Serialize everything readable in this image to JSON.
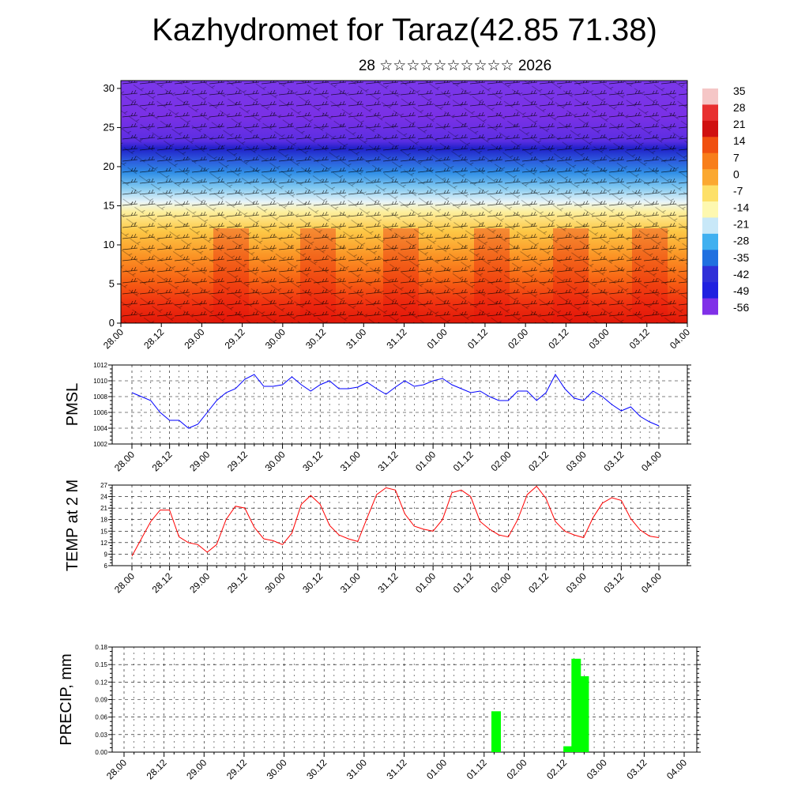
{
  "header": {
    "title": "Kazhydromet for Taraz(42.85 71.38)",
    "subtitle": "28 ☆☆☆☆☆☆☆☆☆☆ 2026"
  },
  "chart_data": [
    {
      "type": "heatmap",
      "name": "temperature-cross-section",
      "y_ticks": [
        "0",
        "5",
        "10",
        "15",
        "20",
        "25",
        "30"
      ],
      "ylim": [
        0,
        31
      ],
      "x_ticks": [
        "28.00",
        "28.12",
        "29.00",
        "29.12",
        "30.00",
        "30.12",
        "31.00",
        "31.12",
        "01.00",
        "01.12",
        "02.00",
        "02.12",
        "03.00",
        "03.12",
        "04.00"
      ],
      "colorbar": {
        "labels": [
          "35",
          "28",
          "21",
          "14",
          "7",
          "0",
          "-7",
          "-14",
          "-21",
          "-28",
          "-35",
          "-42",
          "-49",
          "-56"
        ],
        "colors": [
          "#f5c6c6",
          "#e83030",
          "#d01010",
          "#f05010",
          "#f87e1a",
          "#fba830",
          "#fde068",
          "#fdf8b0",
          "#c8e8f8",
          "#40b0f0",
          "#2070e0",
          "#3030d8",
          "#2020e0",
          "#8030e8"
        ]
      }
    },
    {
      "type": "line",
      "name": "pmsl",
      "ylabel": "PMSL",
      "color": "#0000ff",
      "ylim": [
        1002,
        1012
      ],
      "y_ticks": [
        "1002",
        "1004",
        "1006",
        "1008",
        "1010",
        "1012"
      ],
      "x_ticks": [
        "28.00",
        "28.12",
        "29.00",
        "29.12",
        "30.00",
        "30.12",
        "31.00",
        "31.12",
        "01.00",
        "01.12",
        "02.00",
        "02.12",
        "03.00",
        "03.12",
        "04.00"
      ],
      "values": [
        1008.5,
        1008.0,
        1007.5,
        1006.0,
        1005.0,
        1005.0,
        1004.0,
        1004.5,
        1006.0,
        1007.5,
        1008.5,
        1009.0,
        1010.2,
        1010.8,
        1009.3,
        1009.3,
        1009.5,
        1010.5,
        1009.5,
        1008.7,
        1009.5,
        1010.0,
        1009.0,
        1009.0,
        1009.2,
        1009.8,
        1009.0,
        1008.3,
        1009.2,
        1010.0,
        1009.3,
        1009.5,
        1010.0,
        1010.3,
        1009.5,
        1009.0,
        1008.5,
        1008.7,
        1008.0,
        1007.5,
        1007.5,
        1008.7,
        1008.7,
        1007.5,
        1008.5,
        1010.8,
        1009.0,
        1007.8,
        1007.5,
        1008.7,
        1008.0,
        1007.0,
        1006.2,
        1006.7,
        1005.5,
        1004.8,
        1004.3
      ]
    },
    {
      "type": "line",
      "name": "temp-2m",
      "ylabel": "TEMP at 2 M",
      "color": "#ff0000",
      "ylim": [
        6,
        27
      ],
      "y_ticks": [
        "6",
        "9",
        "12",
        "15",
        "18",
        "21",
        "24",
        "27"
      ],
      "x_ticks": [
        "28.00",
        "28.12",
        "29.00",
        "29.12",
        "30.00",
        "30.12",
        "31.00",
        "31.12",
        "01.00",
        "01.12",
        "02.00",
        "02.12",
        "03.00",
        "03.12",
        "04.00"
      ],
      "values": [
        8.5,
        13,
        17.5,
        20.5,
        20.5,
        13.5,
        12,
        11.5,
        9.5,
        11.5,
        18,
        21.5,
        21,
        16,
        13,
        12.5,
        11.5,
        14.5,
        22,
        24.3,
        22,
        16.5,
        14,
        13,
        12.3,
        18.5,
        24.5,
        26.3,
        25.7,
        19.5,
        16.3,
        15.5,
        15,
        18,
        25,
        25.7,
        24,
        17.5,
        15.5,
        14,
        13.5,
        18,
        24.5,
        26.7,
        23.5,
        17.5,
        15,
        14,
        13.3,
        18.5,
        22.3,
        23.7,
        23,
        18.3,
        15.3,
        13.7,
        13.3
      ]
    },
    {
      "type": "bar",
      "name": "precip",
      "ylabel": "PRECIP, mm",
      "color": "#00ff00",
      "ylim": [
        0,
        0.18
      ],
      "y_ticks": [
        "0.00",
        "0.03",
        "0.06",
        "0.09",
        "0.12",
        "0.15",
        "0.18"
      ],
      "x_ticks": [
        "28.00",
        "28.12",
        "29.00",
        "29.12",
        "30.00",
        "30.12",
        "31.00",
        "31.12",
        "01.00",
        "01.12",
        "02.00",
        "02.12",
        "03.00",
        "03.12",
        "04.00"
      ],
      "bars": [
        {
          "time_index": 4.65,
          "value": 0.07
        },
        {
          "time_index": 5.55,
          "value": 0.01
        },
        {
          "time_index": 5.65,
          "value": 0.16
        },
        {
          "time_index": 5.75,
          "value": 0.13
        }
      ]
    }
  ]
}
